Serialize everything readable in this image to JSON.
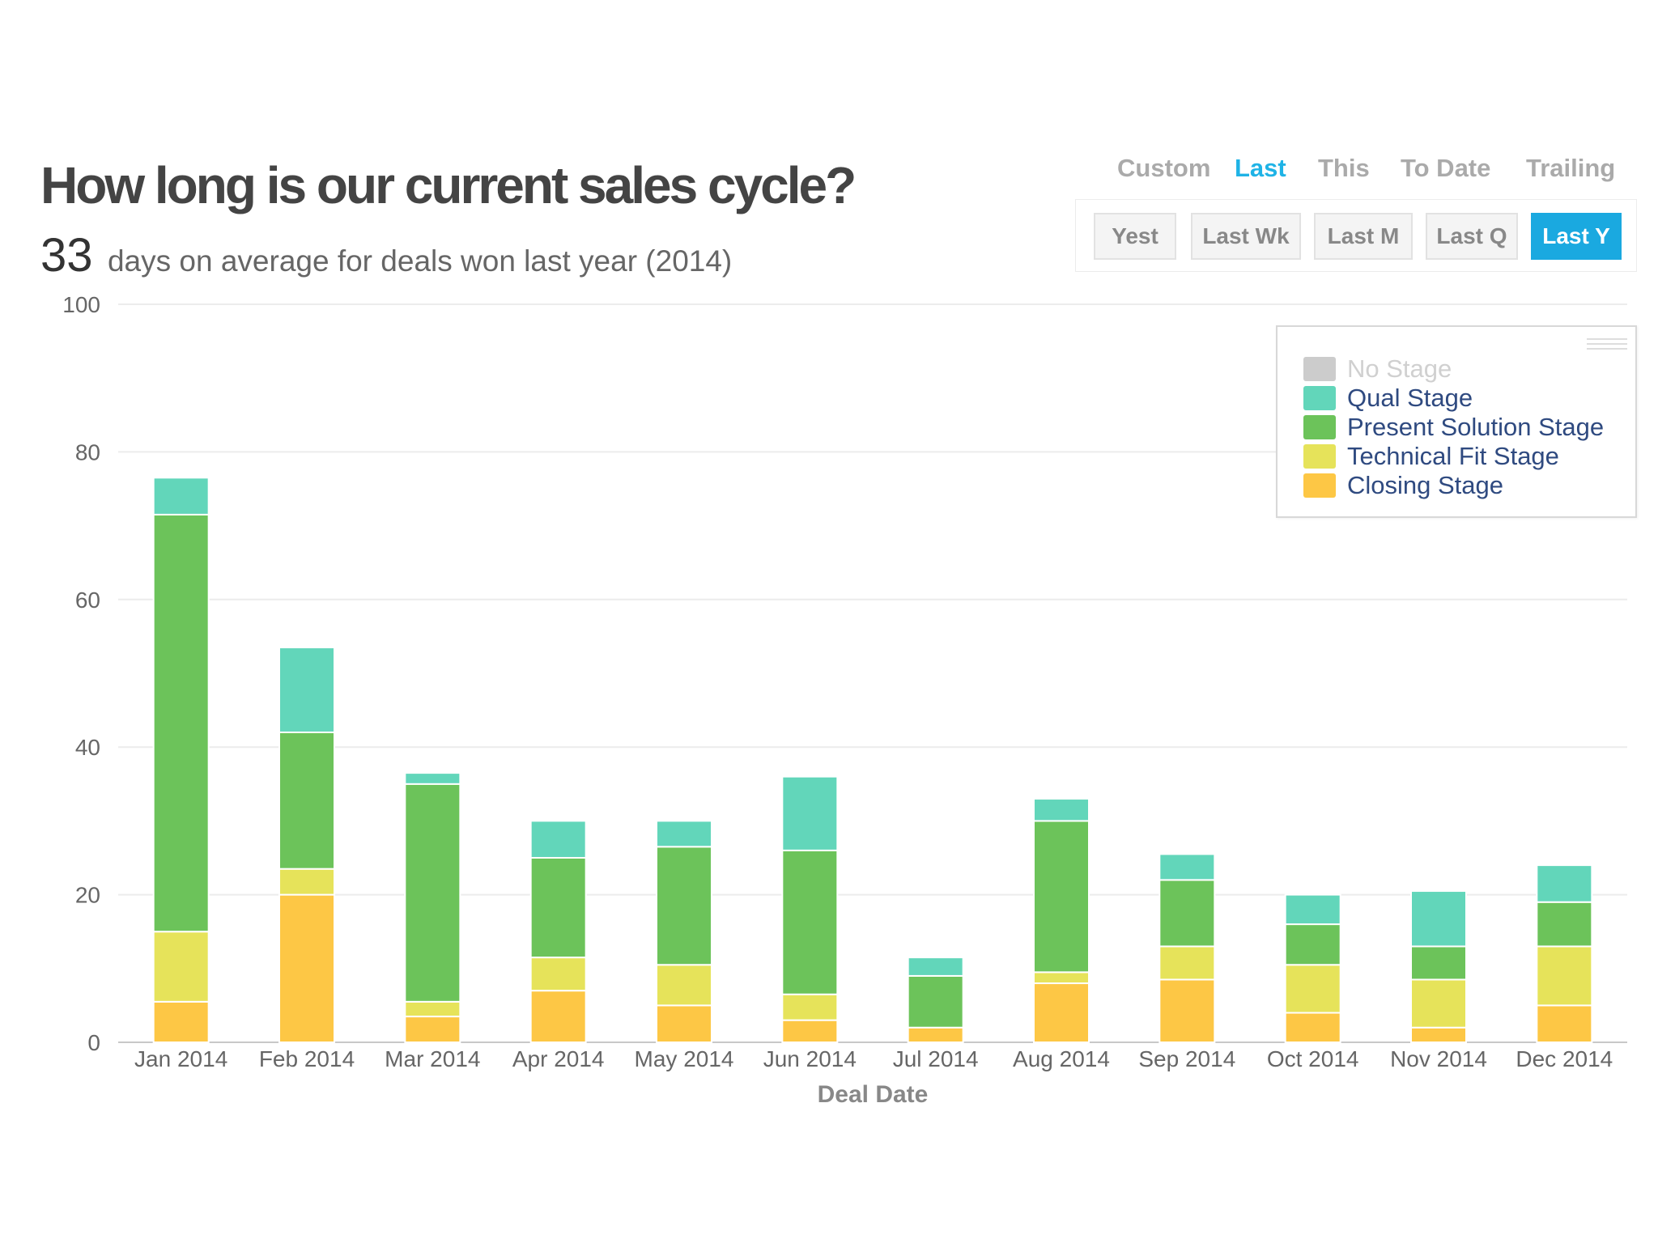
{
  "header": {
    "title": "How long is our current sales cycle?",
    "kpi_value": "33",
    "kpi_text": "days on average for deals won last year (2014)"
  },
  "mode_tabs": [
    {
      "label": "Custom",
      "active": false
    },
    {
      "label": "Last",
      "active": true
    },
    {
      "label": "This",
      "active": false
    },
    {
      "label": "To Date",
      "active": false
    },
    {
      "label": "Trailing",
      "active": false
    }
  ],
  "period_buttons": [
    {
      "label": "Yest",
      "active": false
    },
    {
      "label": "Last Wk",
      "active": false
    },
    {
      "label": "Last M",
      "active": false
    },
    {
      "label": "Last Q",
      "active": false
    },
    {
      "label": "Last Y",
      "active": true
    }
  ],
  "chart_data": {
    "type": "bar",
    "stacked": true,
    "xlabel": "Deal Date",
    "ylabel": "",
    "ylim": [
      0,
      100
    ],
    "yticks": [
      0,
      20,
      40,
      60,
      80,
      100
    ],
    "grid": true,
    "legend_position": "top-right",
    "categories": [
      "Jan 2014",
      "Feb 2014",
      "Mar 2014",
      "Apr 2014",
      "May 2014",
      "Jun 2014",
      "Jul 2014",
      "Aug 2014",
      "Sep 2014",
      "Oct 2014",
      "Nov 2014",
      "Dec 2014"
    ],
    "series": [
      {
        "name": "Closing Stage",
        "color": "#fdc745",
        "values": [
          5.5,
          20,
          3.5,
          7,
          5,
          3,
          2,
          8,
          8.5,
          4,
          2,
          5
        ]
      },
      {
        "name": "Technical Fit Stage",
        "color": "#e6e35a",
        "values": [
          9.5,
          3.5,
          2,
          4.5,
          5.5,
          3.5,
          0,
          1.5,
          4.5,
          6.5,
          6.5,
          8
        ]
      },
      {
        "name": "Present Solution Stage",
        "color": "#6cc35a",
        "values": [
          56.5,
          18.5,
          29.5,
          13.5,
          16,
          19.5,
          7,
          20.5,
          9,
          5.5,
          4.5,
          6
        ]
      },
      {
        "name": "Qual Stage",
        "color": "#62d6ba",
        "values": [
          5,
          11.5,
          1.5,
          5,
          3.5,
          10,
          2.5,
          3,
          3.5,
          4,
          7.5,
          5
        ]
      },
      {
        "name": "No Stage",
        "color": "#cccccc",
        "values": [
          0,
          0,
          0,
          0,
          0,
          0,
          0,
          0,
          0,
          0,
          0,
          0
        ],
        "hidden": true
      }
    ]
  },
  "legend": {
    "items": [
      {
        "label": "No Stage",
        "color": "#cccccc",
        "hidden": true
      },
      {
        "label": "Qual Stage",
        "color": "#62d6ba",
        "hidden": false
      },
      {
        "label": "Present Solution Stage",
        "color": "#6cc35a",
        "hidden": false
      },
      {
        "label": "Technical Fit Stage",
        "color": "#e6e35a",
        "hidden": false
      },
      {
        "label": "Closing Stage",
        "color": "#fdc745",
        "hidden": false
      }
    ]
  }
}
